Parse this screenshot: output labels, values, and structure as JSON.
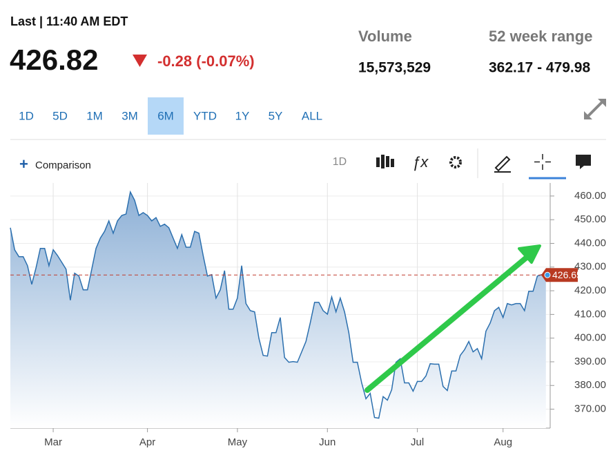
{
  "header": {
    "last_label": "Last | 11:40 AM EDT",
    "price": "426.82",
    "change": "-0.28 (-0.07%)",
    "volume_label": "Volume",
    "volume": "15,573,529",
    "range_label": "52 week range",
    "range": "362.17 - 479.98"
  },
  "periods": [
    "1D",
    "5D",
    "1M",
    "3M",
    "6M",
    "YTD",
    "1Y",
    "5Y",
    "ALL"
  ],
  "selected_period": 4,
  "toolbar": {
    "comparison": "Comparison",
    "interval": "1D"
  },
  "chart_data": {
    "type": "line",
    "color": "#2b6fae",
    "grid": true,
    "values": [
      446.6,
      437.3,
      434.4,
      434.4,
      430.6,
      422.7,
      429.7,
      437.9,
      437.9,
      430.6,
      437.3,
      434.9,
      432,
      429.1,
      416,
      427.4,
      426.2,
      420.4,
      420.4,
      429.1,
      437.9,
      442.2,
      445.1,
      449.5,
      444.3,
      449.5,
      451.8,
      452.4,
      461.7,
      458.2,
      451.8,
      453,
      451.8,
      449.5,
      450.9,
      447.2,
      448.1,
      446.6,
      442.2,
      437.9,
      443.7,
      438.4,
      438.4,
      445.1,
      444.3,
      434.9,
      426.2,
      426.8,
      416.9,
      420.4,
      428.5,
      412.2,
      412.2,
      416.9,
      430.6,
      414.6,
      411.6,
      411.1,
      400,
      392.7,
      392.4,
      402.3,
      402.3,
      408.7,
      391.8,
      389.8,
      390.1,
      389.8,
      394.2,
      398.6,
      406.4,
      415.1,
      415.1,
      411.6,
      410.1,
      417.4,
      411.1,
      416.9,
      411.1,
      402.3,
      389.8,
      389.8,
      381.1,
      374.4,
      376.7,
      366.5,
      366.2,
      375.3,
      373.8,
      378.2,
      389.8,
      391.3,
      381.1,
      381.1,
      377.6,
      381.7,
      381.7,
      384,
      389.2,
      389,
      389,
      379.6,
      377.9,
      386.1,
      386.1,
      392.7,
      395.1,
      398.6,
      394.2,
      395.6,
      391.3,
      402.9,
      406.4,
      411.6,
      413,
      408.7,
      414.6,
      414,
      414.6,
      414.6,
      411.6,
      419.8,
      419.8,
      426.2,
      426.8,
      426.65
    ],
    "xlim": [
      0,
      126
    ],
    "xticks": [
      {
        "value": 10,
        "label": "Mar"
      },
      {
        "value": 32,
        "label": "Apr"
      },
      {
        "value": 53,
        "label": "May"
      },
      {
        "value": 74,
        "label": "Jun"
      },
      {
        "value": 95,
        "label": "Jul"
      },
      {
        "value": 115,
        "label": "Aug"
      }
    ],
    "ylim": [
      362,
      465.5
    ],
    "yticks": [
      {
        "value": 370,
        "label": "370.00"
      },
      {
        "value": 380,
        "label": "380.00"
      },
      {
        "value": 390,
        "label": "390.00"
      },
      {
        "value": 400,
        "label": "400.00"
      },
      {
        "value": 410,
        "label": "410.00"
      },
      {
        "value": 420,
        "label": "420.00"
      },
      {
        "value": 430,
        "label": "430.00"
      },
      {
        "value": 440,
        "label": "440.00"
      },
      {
        "value": 450,
        "label": "450.00"
      },
      {
        "value": 460,
        "label": "460.00"
      }
    ],
    "current_price": 426.65
  }
}
